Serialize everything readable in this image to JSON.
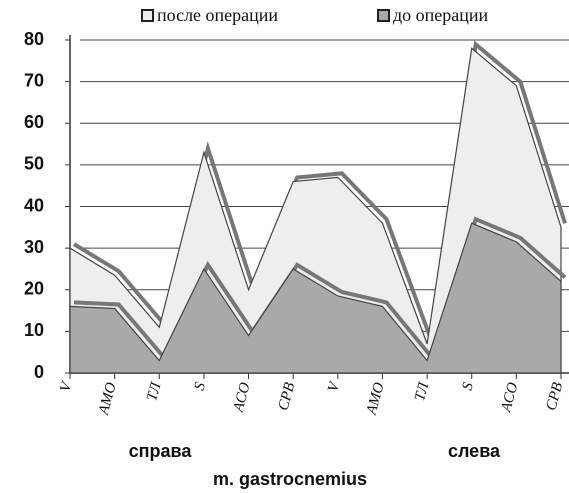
{
  "chart_data": {
    "type": "area",
    "x_label": "m. gastrocnemius",
    "groups": [
      "справа",
      "слева"
    ],
    "categories": [
      "V",
      "АМО",
      "ТЛ",
      "S",
      "АСО",
      "СРВ",
      "V",
      "АМО",
      "ТЛ",
      "S",
      "АСО",
      "СРВ"
    ],
    "series": [
      {
        "name": "после операции",
        "color": "#eeeeee",
        "values": [
          30,
          23.5,
          11,
          53,
          20,
          46,
          47,
          36,
          7,
          78,
          69,
          35
        ]
      },
      {
        "name": "до операции",
        "color": "#a9a9a9",
        "values": [
          16,
          15.5,
          3,
          25,
          9,
          25,
          18.5,
          16,
          3,
          36,
          31.5,
          22
        ]
      }
    ],
    "ylim": [
      0,
      80
    ],
    "yticks": [
      0,
      10,
      20,
      30,
      40,
      50,
      60,
      70,
      80
    ],
    "grid": true
  }
}
